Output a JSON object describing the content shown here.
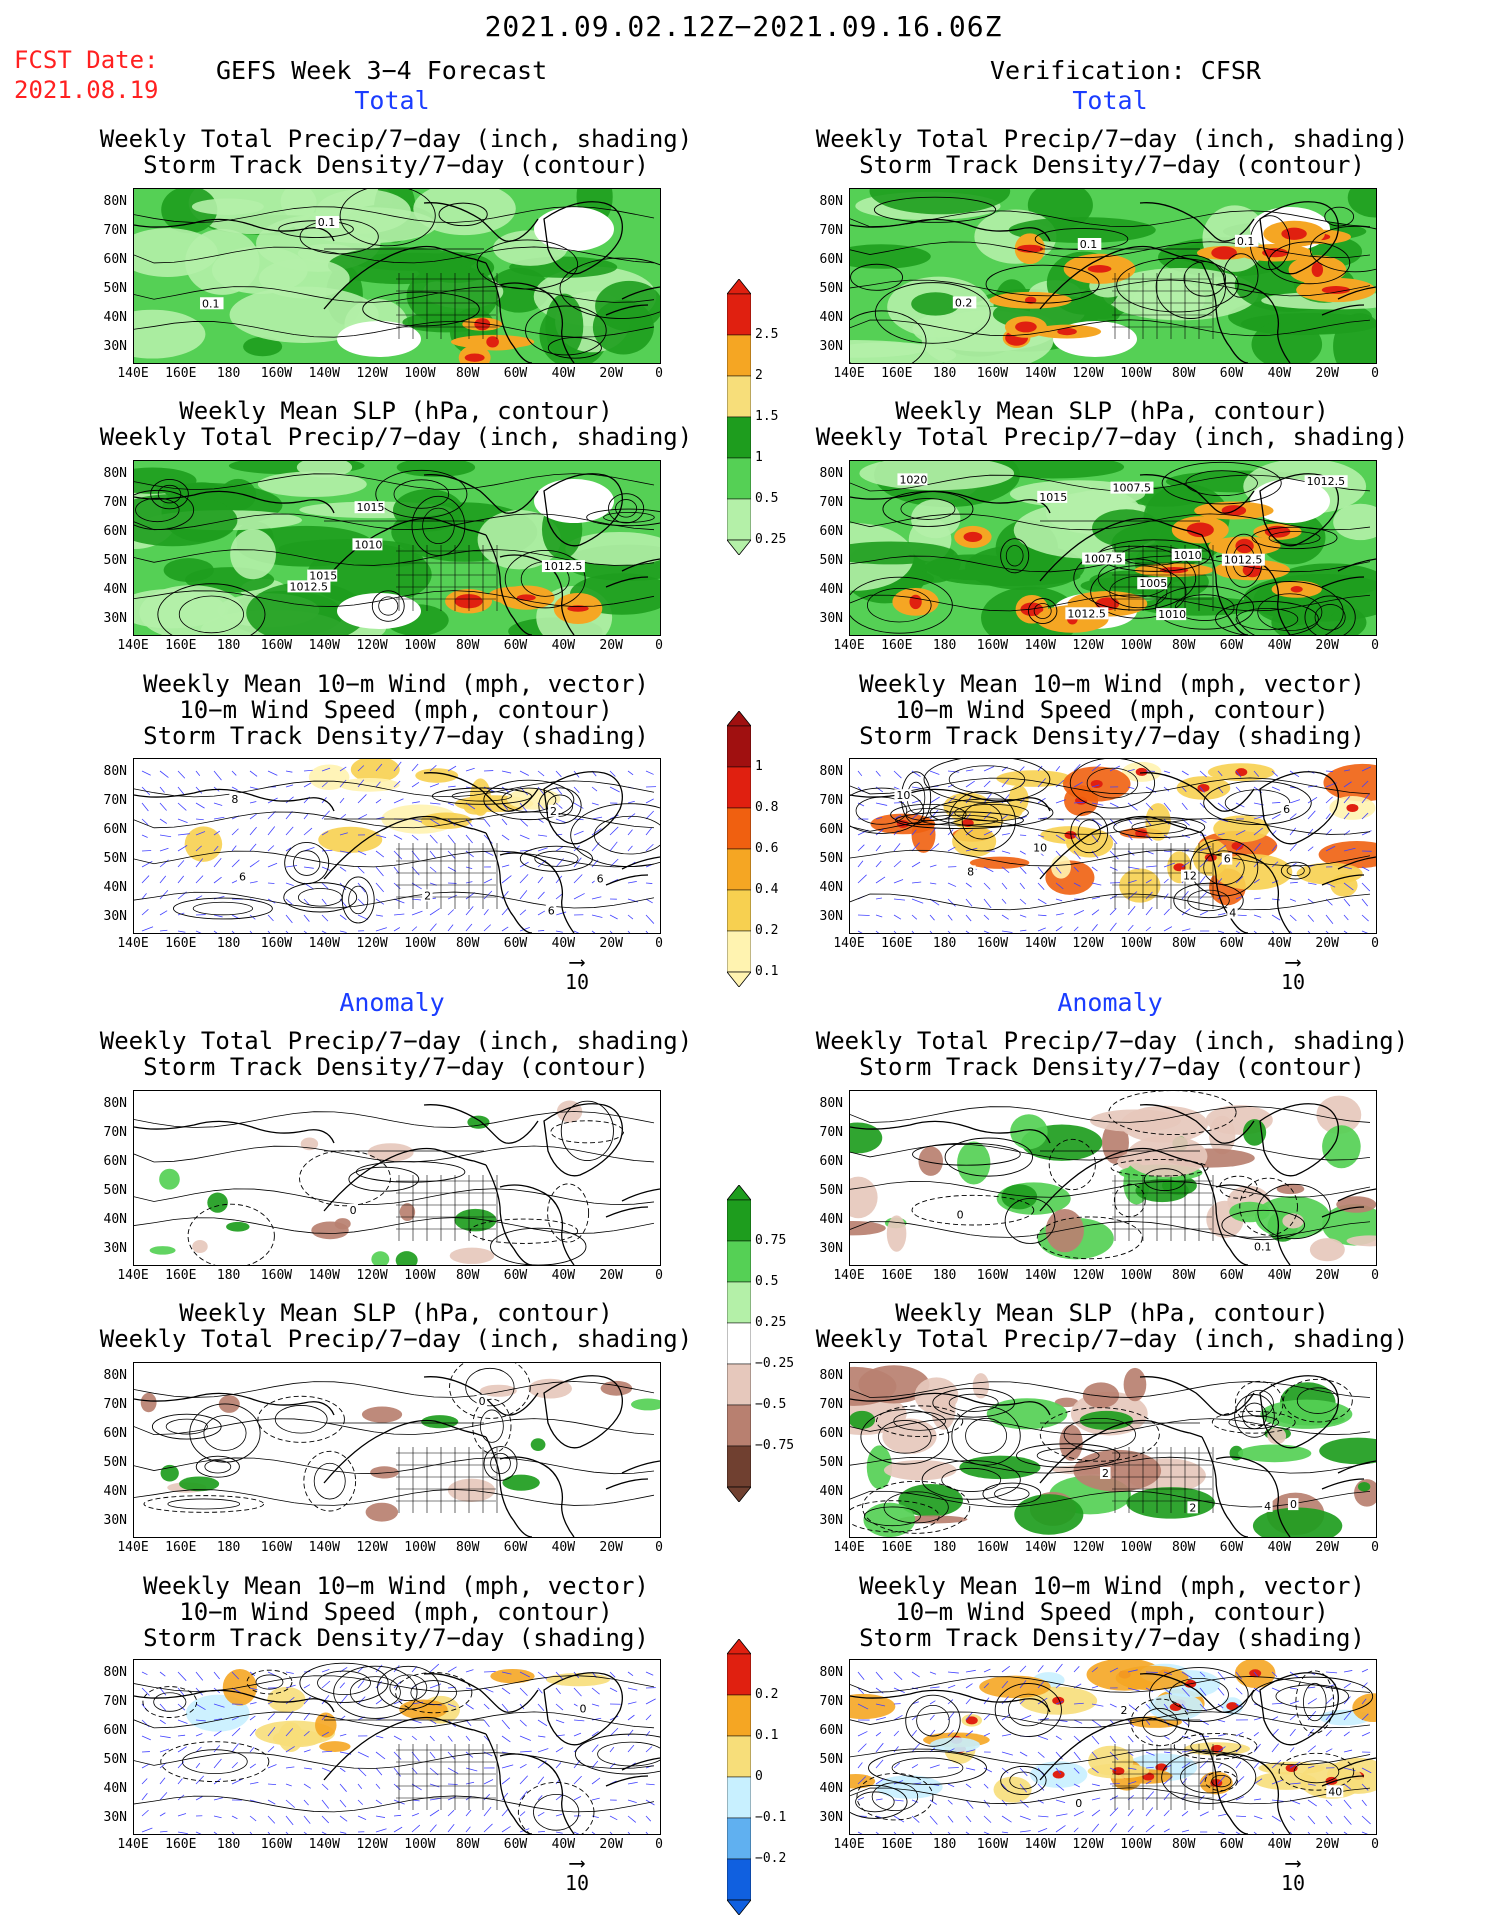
{
  "title": "2021.09.02.12Z−2021.09.16.06Z",
  "fcst_label": "FCST Date:",
  "fcst_date": "2021.08.19",
  "left_header": "GEFS Week 3−4 Forecast",
  "right_header": "Verification: CFSR",
  "section_total": "Total",
  "section_anomaly": "Anomaly",
  "lat_labels": [
    "80N",
    "70N",
    "60N",
    "50N",
    "40N",
    "30N"
  ],
  "lon_labels": [
    "140E",
    "160E",
    "180",
    "160W",
    "140W",
    "120W",
    "100W",
    "80W",
    "60W",
    "40W",
    "20W",
    "0"
  ],
  "panel_titles": {
    "precip_storm": [
      "Weekly Total Precip/7−day (inch, shading)",
      "Storm Track Density/7−day (contour)"
    ],
    "slp_precip": [
      "Weekly Mean SLP (hPa, contour)",
      "Weekly Total Precip/7−day (inch, shading)"
    ],
    "wind_storm": [
      "Weekly Mean 10−m Wind (mph, vector)",
      "10−m Wind Speed (mph, contour)",
      "Storm Track Density/7−day (shading)"
    ]
  },
  "vector_ref": "10",
  "colorbars": {
    "precip_total": {
      "labels": [
        "2.5",
        "2",
        "1.5",
        "1",
        "0.5",
        "0.25"
      ],
      "colors": [
        "#e02010",
        "#f5a623",
        "#f7de7a",
        "#1e9d1e",
        "#55d055",
        "#b4f0a8"
      ]
    },
    "storm_total": {
      "labels": [
        "1",
        "0.8",
        "0.6",
        "0.4",
        "0.2",
        "0.1"
      ],
      "colors": [
        "#a01010",
        "#e02010",
        "#f06010",
        "#f5a623",
        "#f7d050",
        "#fff3b0"
      ]
    },
    "precip_anom": {
      "labels": [
        "0.75",
        "0.5",
        "0.25",
        "−0.25",
        "−0.5",
        "−0.75"
      ],
      "colors": [
        "#1e9d1e",
        "#55d055",
        "#b4f0a8",
        "#ffffff",
        "#e6c8bc",
        "#b88070",
        "#704030"
      ]
    },
    "storm_anom": {
      "labels": [
        "0.2",
        "0.1",
        "0",
        "−0.1",
        "−0.2"
      ],
      "colors": [
        "#e02010",
        "#f5a623",
        "#f7de7a",
        "#c8f0ff",
        "#60b0f0",
        "#1060e0"
      ]
    }
  },
  "contour_labels": {
    "p1l": [
      "0.1",
      "0.1"
    ],
    "p1r": [
      "0.2",
      "0.1",
      "0.1"
    ],
    "p2l": [
      "1012.5",
      "1010",
      "1012.5",
      "1015",
      "1015"
    ],
    "p2r": [
      "1012.5",
      "1010",
      "1007.5",
      "1012.5",
      "1005",
      "1010",
      "1015",
      "1012.5",
      "1007.5",
      "1020"
    ],
    "p3l": [
      "2",
      "6",
      "6",
      "8",
      "2",
      "6"
    ],
    "p3r": [
      "12",
      "10",
      "10",
      "6",
      "4",
      "6",
      "8"
    ],
    "p4l": [
      "0"
    ],
    "p4r": [
      "0.1",
      "0"
    ],
    "p5l": [
      "0"
    ],
    "p5r": [
      "2",
      "2",
      "4",
      "0"
    ],
    "p6l": [
      "0"
    ],
    "p6r": [
      "40",
      "2",
      "0"
    ]
  }
}
